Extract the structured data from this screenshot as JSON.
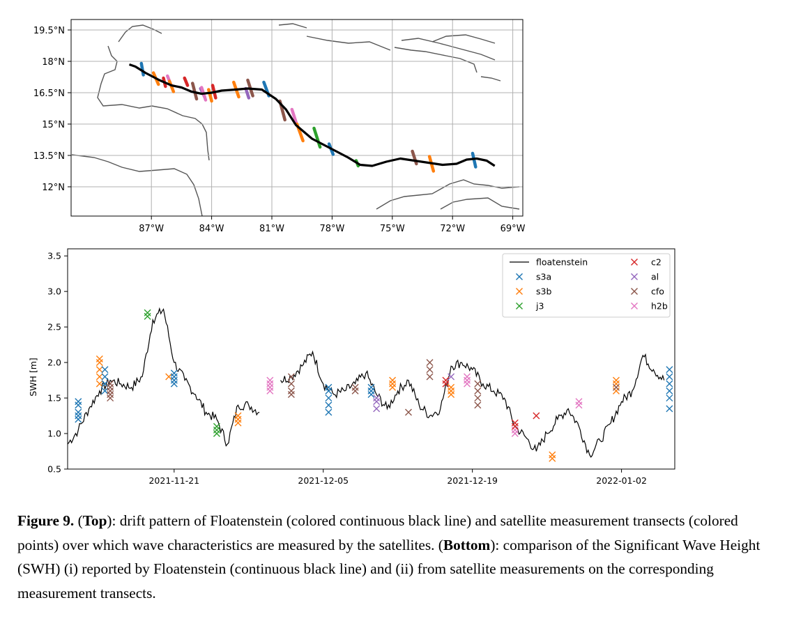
{
  "figure": {
    "label": "Figure 9.",
    "caption_parts": [
      {
        "t": "(",
        "b": false
      },
      {
        "t": "Top",
        "b": true
      },
      {
        "t": "): drift pattern of Floatenstein (colored continuous black line) and satellite measurement transects (colored points) over which wave characteristics are measured by the satellites. (",
        "b": false
      },
      {
        "t": "Bottom",
        "b": true
      },
      {
        "t": "): comparison of the Significant Wave Height (SWH) (i) reported by Floatenstein (continuous black line) and (ii) from satellite measurements on the corresponding measurement transects.",
        "b": false
      }
    ]
  },
  "chart_data": [
    {
      "type": "scatter",
      "panel": "map",
      "title": "",
      "xlabel": "",
      "ylabel": "",
      "xlim": [
        -91,
        -68.5
      ],
      "ylim": [
        10.6,
        20.0
      ],
      "grid": true,
      "x_ticks": [
        -87,
        -84,
        -81,
        -78,
        -75,
        -72,
        -69
      ],
      "x_tick_labels": [
        "87°W",
        "84°W",
        "81°W",
        "78°W",
        "75°W",
        "72°W",
        "69°W"
      ],
      "y_ticks": [
        12,
        13.5,
        15,
        16.5,
        18,
        19.5
      ],
      "y_tick_labels": [
        "12°N",
        "13.5°N",
        "15°N",
        "16.5°N",
        "18°N",
        "19.5°N"
      ],
      "drift_track": {
        "name": "floatenstein",
        "color": "#000000",
        "lon": [
          -88.1,
          -87.8,
          -87.3,
          -86.6,
          -86.0,
          -85.5,
          -85.0,
          -84.5,
          -84.0,
          -83.5,
          -82.8,
          -82.2,
          -81.5,
          -80.8,
          -80.3,
          -79.8,
          -79.0,
          -78.0,
          -77.2,
          -76.6,
          -76.0,
          -75.3,
          -74.6,
          -73.9,
          -73.2,
          -72.5,
          -71.8,
          -71.3,
          -70.8,
          -70.3,
          -69.9
        ],
        "lat": [
          17.85,
          17.75,
          17.45,
          17.1,
          16.85,
          16.75,
          16.55,
          16.45,
          16.5,
          16.6,
          16.65,
          16.7,
          16.65,
          16.2,
          15.7,
          14.95,
          14.3,
          13.8,
          13.4,
          13.05,
          13.0,
          13.2,
          13.35,
          13.25,
          13.15,
          13.05,
          13.1,
          13.3,
          13.35,
          13.25,
          13.0
        ]
      },
      "transects": [
        {
          "sat": "s3a",
          "lon": [
            -87.5,
            -87.4
          ],
          "lat": [
            17.9,
            17.35
          ]
        },
        {
          "sat": "s3b",
          "lon": [
            -86.9,
            -86.65
          ],
          "lat": [
            17.45,
            16.9
          ]
        },
        {
          "sat": "c2",
          "lon": [
            -86.4,
            -86.3
          ],
          "lat": [
            17.2,
            16.8
          ]
        },
        {
          "sat": "h2b",
          "lon": [
            -86.2,
            -86.0
          ],
          "lat": [
            17.3,
            16.8
          ]
        },
        {
          "sat": "s3b",
          "lon": [
            -86.1,
            -85.9
          ],
          "lat": [
            17.05,
            16.55
          ]
        },
        {
          "sat": "c2",
          "lon": [
            -85.35,
            -85.2
          ],
          "lat": [
            17.2,
            16.85
          ]
        },
        {
          "sat": "cfo",
          "lon": [
            -84.95,
            -84.75
          ],
          "lat": [
            16.95,
            16.2
          ]
        },
        {
          "sat": "al",
          "lon": [
            -84.55,
            -84.35
          ],
          "lat": [
            16.7,
            16.3
          ]
        },
        {
          "sat": "h2b",
          "lon": [
            -84.5,
            -84.3
          ],
          "lat": [
            16.75,
            16.15
          ]
        },
        {
          "sat": "s3b",
          "lon": [
            -84.15,
            -84.0
          ],
          "lat": [
            16.65,
            16.1
          ]
        },
        {
          "sat": "c2",
          "lon": [
            -83.95,
            -83.8
          ],
          "lat": [
            16.85,
            16.25
          ]
        },
        {
          "sat": "s3b",
          "lon": [
            -82.9,
            -82.65
          ],
          "lat": [
            17.0,
            16.3
          ]
        },
        {
          "sat": "al",
          "lon": [
            -82.3,
            -82.15
          ],
          "lat": [
            16.7,
            16.25
          ]
        },
        {
          "sat": "cfo",
          "lon": [
            -82.2,
            -81.95
          ],
          "lat": [
            17.1,
            16.35
          ]
        },
        {
          "sat": "s3a",
          "lon": [
            -81.4,
            -81.15
          ],
          "lat": [
            17.0,
            16.35
          ]
        },
        {
          "sat": "cfo",
          "lon": [
            -80.6,
            -80.35
          ],
          "lat": [
            16.1,
            15.2
          ]
        },
        {
          "sat": "h2b",
          "lon": [
            -80.0,
            -79.75
          ],
          "lat": [
            15.7,
            14.95
          ]
        },
        {
          "sat": "s3b",
          "lon": [
            -79.75,
            -79.45
          ],
          "lat": [
            15.0,
            14.2
          ]
        },
        {
          "sat": "j3",
          "lon": [
            -78.9,
            -78.6
          ],
          "lat": [
            14.8,
            13.9
          ]
        },
        {
          "sat": "s3a",
          "lon": [
            -78.15,
            -77.95
          ],
          "lat": [
            14.05,
            13.55
          ]
        },
        {
          "sat": "j3",
          "lon": [
            -76.8,
            -76.7
          ],
          "lat": [
            13.25,
            13.0
          ]
        },
        {
          "sat": "cfo",
          "lon": [
            -74.0,
            -73.8
          ],
          "lat": [
            13.7,
            13.1
          ]
        },
        {
          "sat": "s3b",
          "lon": [
            -73.15,
            -72.95
          ],
          "lat": [
            13.45,
            12.75
          ]
        },
        {
          "sat": "s3a",
          "lon": [
            -71.0,
            -70.85
          ],
          "lat": [
            13.6,
            12.95
          ]
        }
      ]
    },
    {
      "type": "line",
      "panel": "timeseries",
      "title": "",
      "xlabel": "",
      "ylabel": "SWH [m]",
      "xlim": [
        "2021-11-11",
        "2022-01-07"
      ],
      "ylim": [
        0.5,
        3.6
      ],
      "y_ticks": [
        0.5,
        1.0,
        1.5,
        2.0,
        2.5,
        3.0,
        3.5
      ],
      "y_tick_labels": [
        "0.5",
        "1.0",
        "1.5",
        "2.0",
        "2.5",
        "3.0",
        "3.5"
      ],
      "x_ticks": [
        "2021-11-21",
        "2021-12-05",
        "2021-12-19",
        "2022-01-02"
      ],
      "x_tick_labels": [
        "2021-11-21",
        "2021-12-05",
        "2021-12-19",
        "2022-01-02"
      ],
      "legend_position": "top-right",
      "legend": [
        {
          "name": "floatenstein",
          "color": "#000000",
          "marker": "line"
        },
        {
          "name": "s3a",
          "color": "#1f77b4",
          "marker": "x"
        },
        {
          "name": "s3b",
          "color": "#ff7f0e",
          "marker": "x"
        },
        {
          "name": "j3",
          "color": "#2ca02c",
          "marker": "x"
        },
        {
          "name": "c2",
          "color": "#d62728",
          "marker": "x"
        },
        {
          "name": "al",
          "color": "#9467bd",
          "marker": "x"
        },
        {
          "name": "cfo",
          "color": "#8c564b",
          "marker": "x"
        },
        {
          "name": "h2b",
          "color": "#e377c2",
          "marker": "x"
        }
      ],
      "line": {
        "name": "floatenstein",
        "x": [
          "2021-11-11",
          "2021-11-12",
          "2021-11-13",
          "2021-11-14",
          "2021-11-15",
          "2021-11-16",
          "2021-11-17",
          "2021-11-18",
          "2021-11-19",
          "2021-11-20",
          "2021-11-21",
          "2021-11-22",
          "2021-11-23",
          "2021-11-24",
          "2021-11-25",
          "2021-11-26",
          "2021-11-27",
          "2021-11-28",
          "2021-11-29",
          "2021-11-30",
          "2021-12-01",
          "2021-12-02",
          "2021-12-03",
          "2021-12-04",
          "2021-12-05",
          "2021-12-06",
          "2021-12-07",
          "2021-12-08",
          "2021-12-09",
          "2021-12-10",
          "2021-12-11",
          "2021-12-12",
          "2021-12-13",
          "2021-12-14",
          "2021-12-15",
          "2021-12-16",
          "2021-12-17",
          "2021-12-18",
          "2021-12-19",
          "2021-12-20",
          "2021-12-21",
          "2021-12-22",
          "2021-12-23",
          "2021-12-24",
          "2021-12-25",
          "2021-12-26",
          "2021-12-27",
          "2021-12-28",
          "2021-12-29",
          "2021-12-30",
          "2021-12-31",
          "2022-01-01",
          "2022-01-02",
          "2022-01-03",
          "2022-01-04",
          "2022-01-05",
          "2022-01-06"
        ],
        "y": [
          0.85,
          1.05,
          1.35,
          1.6,
          1.75,
          1.7,
          1.65,
          1.8,
          2.6,
          2.75,
          2.0,
          1.75,
          1.55,
          1.3,
          1.2,
          0.85,
          1.4,
          1.4,
          1.3,
          null,
          1.75,
          1.8,
          1.95,
          2.15,
          1.7,
          1.55,
          1.6,
          1.7,
          1.85,
          1.55,
          1.35,
          1.6,
          1.75,
          1.4,
          1.25,
          1.35,
          1.95,
          2.0,
          1.9,
          1.7,
          1.6,
          1.5,
          1.1,
          0.95,
          0.75,
          1.0,
          1.2,
          1.35,
          1.1,
          0.7,
          0.9,
          1.15,
          1.45,
          1.6,
          2.1,
          1.9,
          1.75
        ]
      },
      "satellite_points": [
        {
          "sat": "s3a",
          "x": "2021-11-12",
          "y": [
            1.2,
            1.25,
            1.3,
            1.4,
            1.45
          ]
        },
        {
          "sat": "s3b",
          "x": "2021-11-14",
          "y": [
            1.7,
            1.8,
            1.9,
            2.0,
            2.05
          ]
        },
        {
          "sat": "s3a",
          "x": "2021-11-14.5",
          "y": [
            1.6,
            1.7,
            1.8,
            1.9
          ]
        },
        {
          "sat": "cfo",
          "x": "2021-11-15",
          "y": [
            1.5,
            1.55,
            1.6,
            1.65,
            1.7
          ]
        },
        {
          "sat": "j3",
          "x": "2021-11-18.5",
          "y": [
            2.65,
            2.7
          ]
        },
        {
          "sat": "s3b",
          "x": "2021-11-20.5",
          "y": [
            1.8
          ]
        },
        {
          "sat": "s3a",
          "x": "2021-11-21",
          "y": [
            1.7,
            1.75,
            1.8,
            1.85
          ]
        },
        {
          "sat": "j3",
          "x": "2021-11-25",
          "y": [
            1.0,
            1.05,
            1.1
          ]
        },
        {
          "sat": "s3b",
          "x": "2021-11-27",
          "y": [
            1.15,
            1.2,
            1.25
          ]
        },
        {
          "sat": "h2b",
          "x": "2021-11-30",
          "y": [
            1.6,
            1.65,
            1.7,
            1.75
          ]
        },
        {
          "sat": "cfo",
          "x": "2021-12-02",
          "y": [
            1.55,
            1.6,
            1.7,
            1.8
          ]
        },
        {
          "sat": "s3a",
          "x": "2021-12-05.5",
          "y": [
            1.3,
            1.4,
            1.5,
            1.6,
            1.65
          ]
        },
        {
          "sat": "cfo",
          "x": "2021-12-08",
          "y": [
            1.6,
            1.65
          ]
        },
        {
          "sat": "s3a",
          "x": "2021-12-09.5",
          "y": [
            1.55,
            1.6,
            1.65
          ]
        },
        {
          "sat": "al",
          "x": "2021-12-10",
          "y": [
            1.35,
            1.45,
            1.5
          ]
        },
        {
          "sat": "s3b",
          "x": "2021-12-11.5",
          "y": [
            1.65,
            1.7,
            1.75
          ]
        },
        {
          "sat": "cfo",
          "x": "2021-12-13",
          "y": [
            1.3
          ]
        },
        {
          "sat": "cfo",
          "x": "2021-12-15",
          "y": [
            1.8,
            1.9,
            2.0
          ]
        },
        {
          "sat": "c2",
          "x": "2021-12-16.5",
          "y": [
            1.7,
            1.75
          ]
        },
        {
          "sat": "s3b",
          "x": "2021-12-17",
          "y": [
            1.55,
            1.6,
            1.65
          ]
        },
        {
          "sat": "al",
          "x": "2021-12-17",
          "y": [
            1.8
          ]
        },
        {
          "sat": "h2b",
          "x": "2021-12-18.5",
          "y": [
            1.7,
            1.75,
            1.8
          ]
        },
        {
          "sat": "cfo",
          "x": "2021-12-19.5",
          "y": [
            1.4,
            1.5,
            1.6,
            1.7
          ]
        },
        {
          "sat": "h2b",
          "x": "2021-12-23",
          "y": [
            1.0,
            1.05
          ]
        },
        {
          "sat": "c2",
          "x": "2021-12-23",
          "y": [
            1.1,
            1.15
          ]
        },
        {
          "sat": "c2",
          "x": "2021-12-25",
          "y": [
            1.25
          ]
        },
        {
          "sat": "s3b",
          "x": "2021-12-26.5",
          "y": [
            0.65,
            0.7
          ]
        },
        {
          "sat": "h2b",
          "x": "2021-12-29",
          "y": [
            1.4,
            1.45
          ]
        },
        {
          "sat": "s3b",
          "x": "2022-01-01.5",
          "y": [
            1.6,
            1.7,
            1.75
          ]
        },
        {
          "sat": "cfo",
          "x": "2022-01-01.5",
          "y": [
            1.65
          ]
        },
        {
          "sat": "s3a",
          "x": "2022-01-06.5",
          "y": [
            1.35,
            1.5,
            1.6,
            1.7,
            1.8,
            1.9
          ]
        }
      ]
    }
  ]
}
